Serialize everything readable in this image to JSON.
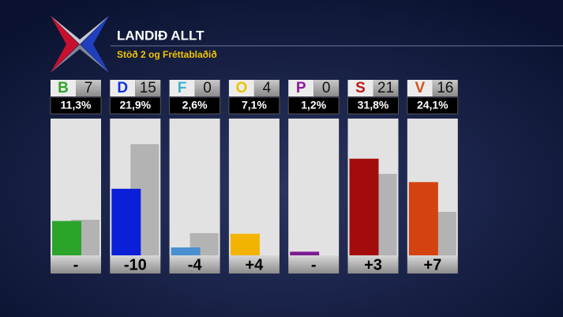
{
  "chart_data": {
    "type": "bar",
    "title": "LANDIÐ ALLT",
    "subtitle": "Stöð 2 og Fréttablaðið",
    "categories": [
      "B",
      "D",
      "F",
      "O",
      "P",
      "S",
      "V"
    ],
    "category_colors": [
      "#2fa52a",
      "#1230d8",
      "#3cb3cf",
      "#e8c400",
      "#8b1a9b",
      "#c01818",
      "#d2531a"
    ],
    "seats": [
      7,
      15,
      0,
      4,
      0,
      21,
      16
    ],
    "seat_change": [
      null,
      -10,
      -4,
      4,
      null,
      3,
      7
    ],
    "seat_change_labels": [
      "-",
      "-10",
      "-4",
      "+4",
      "-",
      "+3",
      "+7"
    ],
    "series": [
      {
        "values": [
          11.3,
          21.9,
          2.6,
          7.1,
          1.2,
          31.8,
          24.1
        ],
        "value_labels": [
          "11,3%",
          "21,9%",
          "2,6%",
          "7,1%",
          "1,2%",
          "31,8%",
          "24,1%"
        ],
        "colors": [
          "#2aa52a",
          "#0b1fd8",
          "#4a8fd0",
          "#f2b400",
          "#7d1a94",
          "#a30c0c",
          "#d4420f"
        ]
      },
      {
        "color": "#b3b3b3",
        "values": [
          11.7,
          36.6,
          7.3,
          null,
          null,
          26.8,
          14.3
        ]
      }
    ],
    "ylim": [
      0,
      45
    ]
  }
}
